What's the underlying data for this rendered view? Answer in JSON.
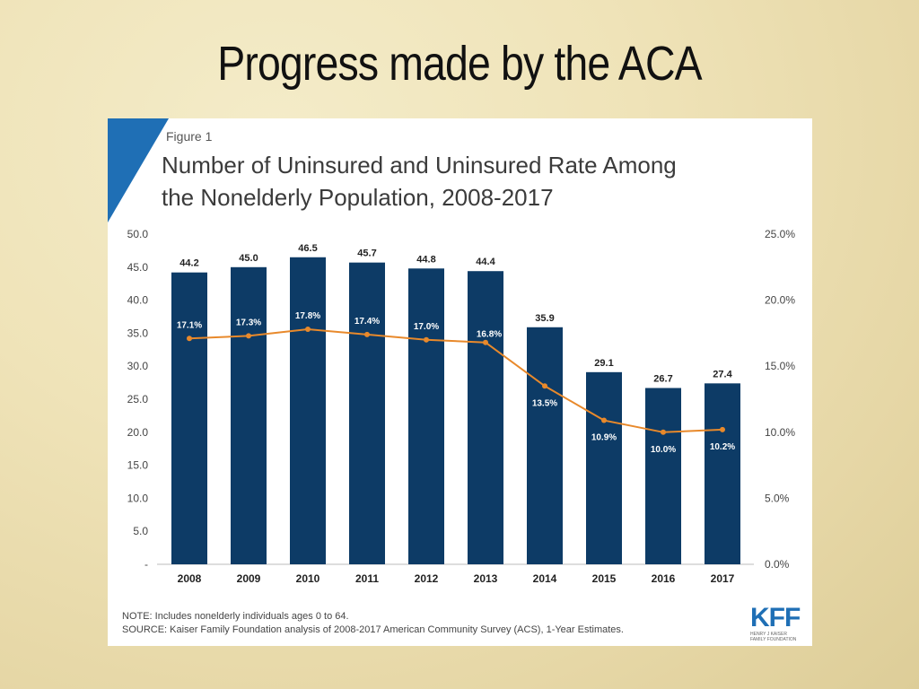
{
  "slide": {
    "title": "Progress made by the ACA"
  },
  "figure": {
    "label": "Figure 1",
    "title_line1": "Number of Uninsured and Uninsured Rate Among",
    "title_line2": "the Nonelderly Population, 2008-2017",
    "note": "NOTE: Includes nonelderly individuals ages 0 to 64.",
    "source": "SOURCE: Kaiser Family Foundation analysis of 2008-2017 American Community Survey (ACS), 1-Year Estimates.",
    "logo_text": "KFF",
    "logo_subtext": "HENRY J KAISER FAMILY FOUNDATION"
  },
  "colors": {
    "bar": "#0d3b66",
    "line": "#e8892b",
    "accent": "#1f6fb5"
  },
  "chart_data": {
    "type": "bar",
    "categories": [
      "2008",
      "2009",
      "2010",
      "2011",
      "2012",
      "2013",
      "2014",
      "2015",
      "2016",
      "2017"
    ],
    "series": [
      {
        "type": "bar",
        "axis": "left",
        "values": [
          44.2,
          45.0,
          46.5,
          45.7,
          44.8,
          44.4,
          35.9,
          29.1,
          26.7,
          27.4
        ],
        "value_labels": [
          "44.2",
          "45.0",
          "46.5",
          "45.7",
          "44.8",
          "44.4",
          "35.9",
          "29.1",
          "26.7",
          "27.4"
        ]
      },
      {
        "type": "line",
        "axis": "right",
        "values": [
          17.1,
          17.3,
          17.8,
          17.4,
          17.0,
          16.8,
          13.5,
          10.9,
          10.0,
          10.2
        ],
        "value_labels": [
          "17.1%",
          "17.3%",
          "17.8%",
          "17.4%",
          "17.0%",
          "16.8%",
          "13.5%",
          "10.9%",
          "10.0%",
          "10.2%"
        ]
      }
    ],
    "y_left": {
      "ylim": [
        0,
        50
      ],
      "ticks": [
        0,
        5,
        10,
        15,
        20,
        25,
        30,
        35,
        40,
        45,
        50
      ],
      "tick_labels": [
        "-",
        "5.0",
        "10.0",
        "15.0",
        "20.0",
        "25.0",
        "30.0",
        "35.0",
        "40.0",
        "45.0",
        "50.0"
      ]
    },
    "y_right": {
      "ylim": [
        0,
        25
      ],
      "ticks": [
        0,
        5,
        10,
        15,
        20,
        25
      ],
      "tick_labels": [
        "0.0%",
        "5.0%",
        "10.0%",
        "15.0%",
        "20.0%",
        "25.0%"
      ]
    },
    "title": "Number of Uninsured and Uninsured Rate Among the Nonelderly Population, 2008-2017",
    "xlabel": "",
    "ylabel": "",
    "grid": false
  }
}
